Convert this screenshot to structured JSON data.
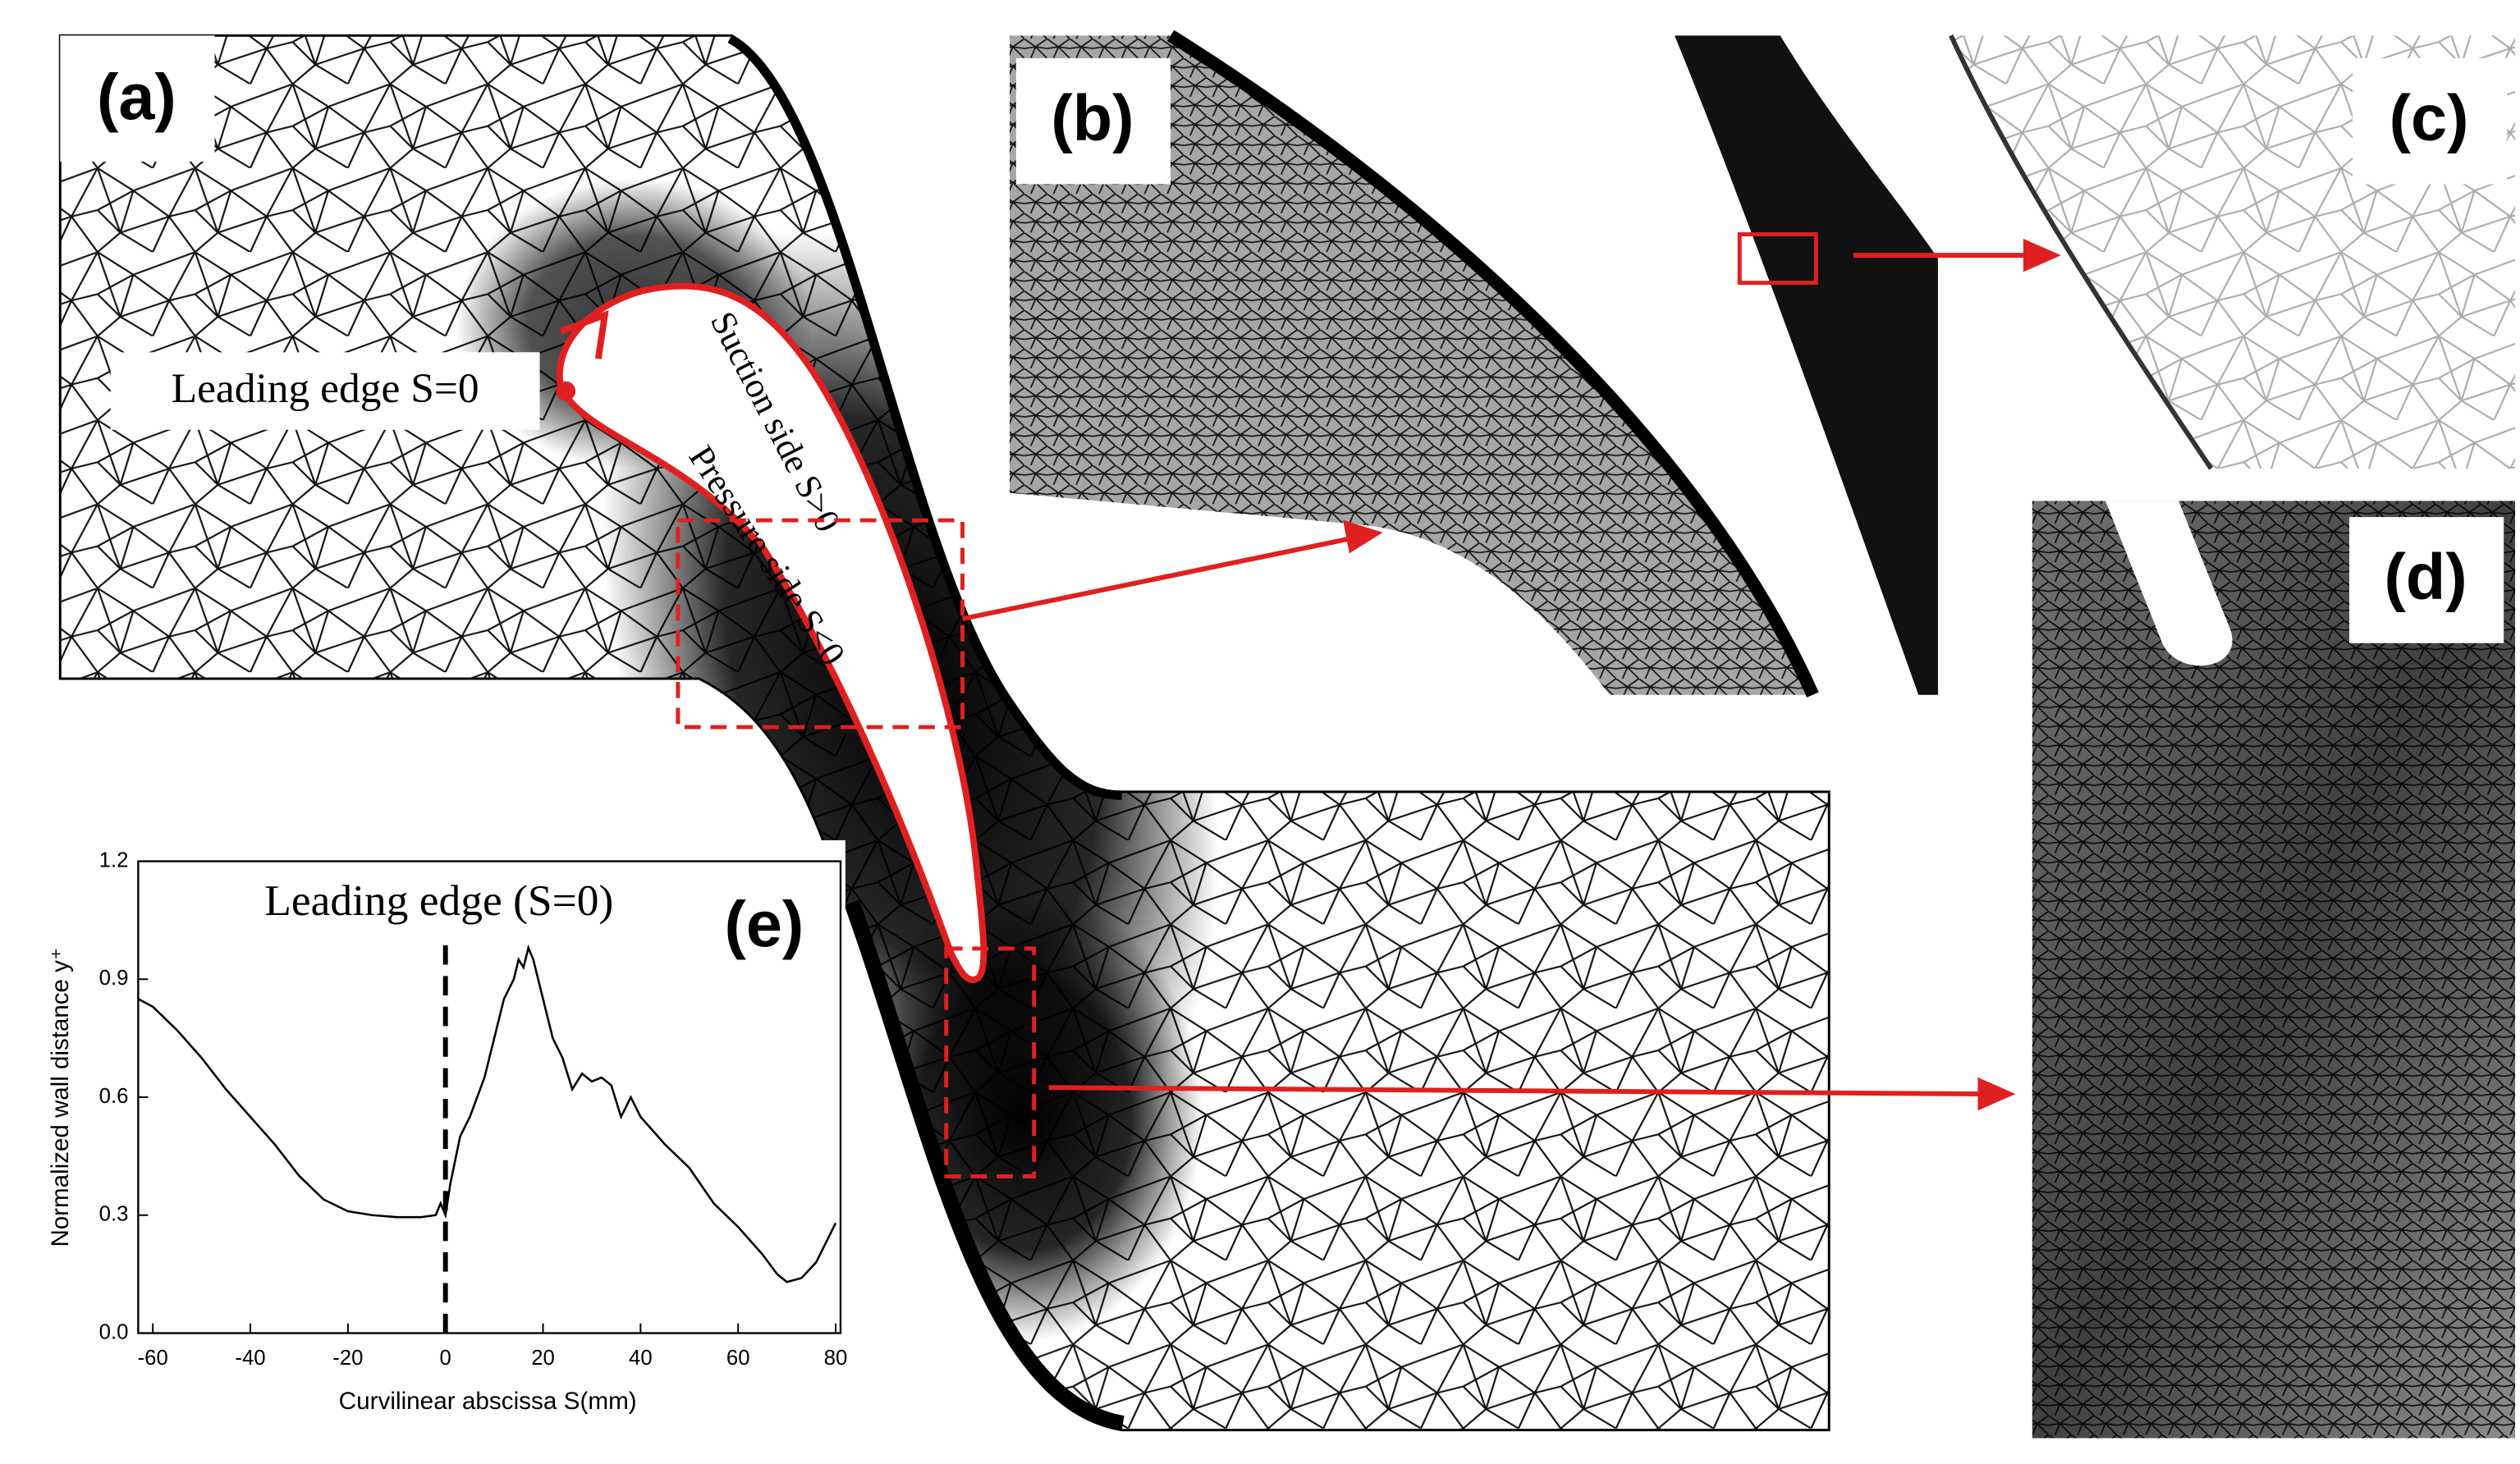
{
  "panels": [
    "(a)",
    "(b)",
    "(c)",
    "(d)",
    "(e)"
  ],
  "annotations": {
    "leading_edge": "Leading edge S=0",
    "suction_side": "Suction side S>0",
    "pressure_side": "Pressure side S<0"
  },
  "chart_data": {
    "type": "line",
    "annotation": "Leading edge (S=0)",
    "vline": 0,
    "xlabel": "Curvilinear abscissa S(mm)",
    "ylabel": "Normalized wall distance y⁺",
    "x": [
      -63,
      -60,
      -55,
      -50,
      -45,
      -40,
      -35,
      -30,
      -25,
      -20,
      -15,
      -10,
      -5,
      -2,
      -1,
      0,
      1,
      3,
      5,
      8,
      10,
      12,
      14,
      15,
      16,
      17,
      18,
      20,
      22,
      24,
      26,
      28,
      30,
      32,
      34,
      36,
      38,
      40,
      45,
      50,
      55,
      60,
      65,
      68,
      70,
      73,
      76,
      80
    ],
    "values": [
      0.85,
      0.83,
      0.77,
      0.7,
      0.62,
      0.55,
      0.48,
      0.4,
      0.34,
      0.31,
      0.3,
      0.295,
      0.295,
      0.3,
      0.33,
      0.3,
      0.38,
      0.5,
      0.55,
      0.65,
      0.75,
      0.85,
      0.9,
      0.95,
      0.93,
      0.98,
      0.95,
      0.85,
      0.75,
      0.7,
      0.62,
      0.66,
      0.64,
      0.65,
      0.63,
      0.55,
      0.6,
      0.55,
      0.48,
      0.42,
      0.33,
      0.27,
      0.2,
      0.15,
      0.13,
      0.14,
      0.18,
      0.28
    ],
    "color": "#000000",
    "xlim": [
      -63,
      81
    ],
    "ylim": [
      0,
      1.2
    ],
    "xticks": [
      -60,
      -40,
      -20,
      0,
      20,
      40,
      60,
      80
    ],
    "yticks": [
      {
        "value": 0,
        "label": "0.0"
      },
      0.3,
      0.6,
      0.9,
      1.2
    ]
  }
}
